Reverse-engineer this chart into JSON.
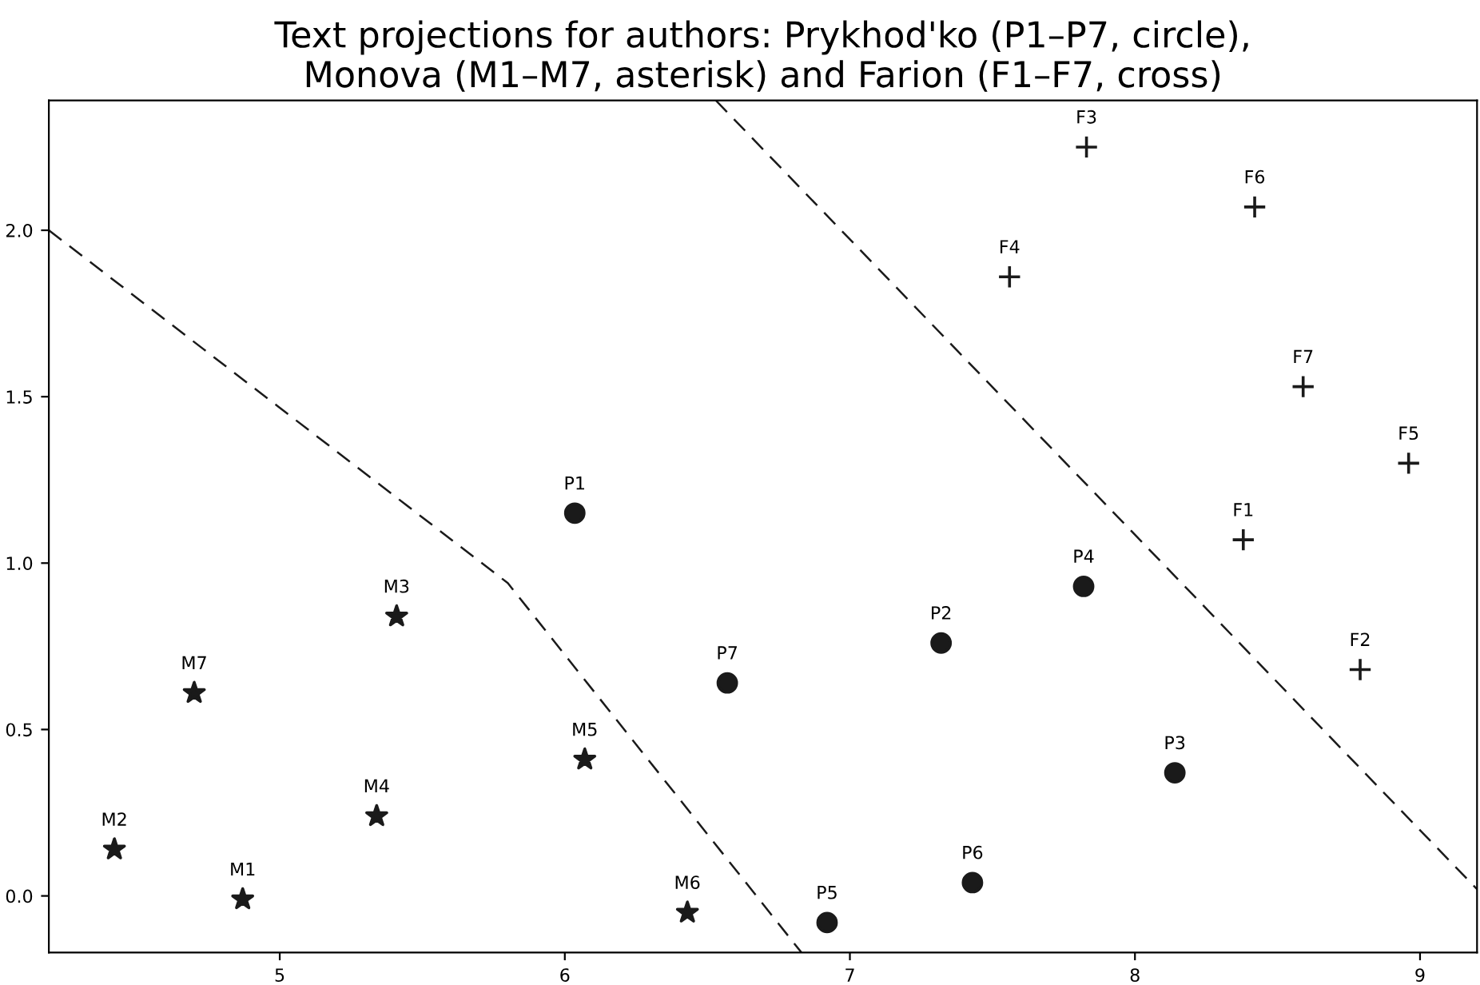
{
  "chart_data": {
    "type": "scatter",
    "title": "Text projections for authors: Prykhod'ko (P1–P7, circle),\nMonova (M1–M7, asterisk) and Farion (F1–F7, cross)",
    "series": [
      {
        "marker": "circle",
        "color": "#1a1a1a",
        "x": [
          6.035,
          7.32,
          8.14,
          7.82,
          6.92,
          7.43,
          6.57
        ],
        "values": [
          1.15,
          0.76,
          0.37,
          0.93,
          -0.08,
          0.04,
          0.64
        ]
      },
      {
        "marker": "star",
        "color": "#1a1a1a",
        "x": [
          4.87,
          4.42,
          5.41,
          5.34,
          6.07,
          6.43,
          4.7
        ],
        "values": [
          -0.01,
          0.14,
          0.84,
          0.24,
          0.41,
          -0.05,
          0.61
        ]
      },
      {
        "marker": "cross",
        "color": "#1a1a1a",
        "x": [
          8.38,
          8.79,
          7.83,
          7.56,
          8.96,
          8.42,
          8.59
        ],
        "values": [
          1.07,
          0.68,
          2.25,
          1.86,
          1.3,
          2.07,
          1.53
        ]
      },
      {
        "type": "line",
        "line_style": "dashed",
        "color": "#1a1a1a",
        "x": [
          4.19,
          5.8,
          6.83
        ],
        "values": [
          2.0,
          0.94,
          -0.17
        ]
      },
      {
        "type": "line",
        "line_style": "dashed",
        "color": "#1a1a1a",
        "x": [
          6.53,
          9.2
        ],
        "values": [
          2.39,
          0.02
        ]
      }
    ],
    "annotations": [
      {
        "text": "P1",
        "x": 6.035,
        "y": 1.15
      },
      {
        "text": "P2",
        "x": 7.32,
        "y": 0.76
      },
      {
        "text": "P3",
        "x": 8.14,
        "y": 0.37
      },
      {
        "text": "P4",
        "x": 7.82,
        "y": 0.93
      },
      {
        "text": "P5",
        "x": 6.92,
        "y": -0.08
      },
      {
        "text": "P6",
        "x": 7.43,
        "y": 0.04
      },
      {
        "text": "P7",
        "x": 6.57,
        "y": 0.64
      },
      {
        "text": "M1",
        "x": 4.87,
        "y": -0.01
      },
      {
        "text": "M2",
        "x": 4.42,
        "y": 0.14
      },
      {
        "text": "M3",
        "x": 5.41,
        "y": 0.84
      },
      {
        "text": "M4",
        "x": 5.34,
        "y": 0.24
      },
      {
        "text": "M5",
        "x": 6.07,
        "y": 0.41
      },
      {
        "text": "M6",
        "x": 6.43,
        "y": -0.05
      },
      {
        "text": "M7",
        "x": 4.7,
        "y": 0.61
      },
      {
        "text": "F1",
        "x": 8.38,
        "y": 1.07
      },
      {
        "text": "F2",
        "x": 8.79,
        "y": 0.68
      },
      {
        "text": "F3",
        "x": 7.83,
        "y": 2.25
      },
      {
        "text": "F4",
        "x": 7.56,
        "y": 1.86
      },
      {
        "text": "F5",
        "x": 8.96,
        "y": 1.3
      },
      {
        "text": "F6",
        "x": 8.42,
        "y": 2.07
      },
      {
        "text": "F7",
        "x": 8.59,
        "y": 1.53
      }
    ],
    "xlim": [
      4.19,
      9.2
    ],
    "ylim": [
      -0.17,
      2.39
    ],
    "xticks": [
      5,
      6,
      7,
      8,
      9
    ],
    "yticks": [
      {
        "value": 0,
        "label": "0.0"
      },
      {
        "value": 0.5,
        "label": "0.5"
      },
      {
        "value": 1,
        "label": "1.0"
      },
      {
        "value": 1.5,
        "label": "1.5"
      },
      {
        "value": 2,
        "label": "2.0"
      }
    ],
    "grid": false,
    "legend": false
  }
}
